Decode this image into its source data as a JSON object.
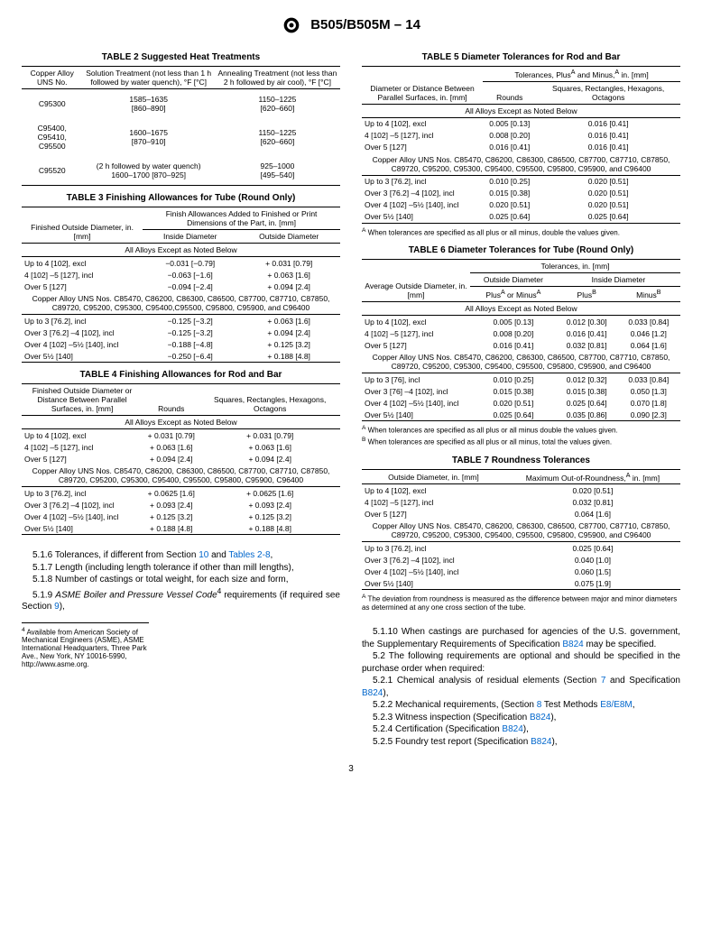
{
  "header": {
    "spec": "B505/B505M – 14"
  },
  "table2": {
    "title": "TABLE 2 Suggested Heat Treatments",
    "cols": [
      "Copper Alloy UNS No.",
      "Solution Treatment (not less than 1 h followed by water quench), °F [°C]",
      "Annealing Treatment (not less than 2 h followed by air cool), °F [°C]"
    ],
    "rows": [
      [
        "C95300",
        "1585–1635\n[860–890]",
        "1150–1225\n[620–660]"
      ],
      [
        "C95400, C95410, C95500",
        "1600–1675\n[870–910]",
        "1150–1225\n[620–660]"
      ],
      [
        "C95520",
        "(2 h followed by water quench)\n1600–1700 [870–925]",
        "925–1000\n[495–540]"
      ]
    ]
  },
  "table3": {
    "title": "TABLE 3 Finishing Allowances for Tube (Round Only)",
    "h1": "Finished Outside Diameter, in. [mm]",
    "h2": "Finish Allowances Added to Finished or Print Dimensions of the Part, in. [mm]",
    "sub": [
      "Inside Diameter",
      "Outside Diameter"
    ],
    "note1": "All Alloys Except as Noted Below",
    "r1": [
      [
        "Up to 4 [102], excl",
        "−0.031 [−0.79]",
        "+ 0.031 [0.79]"
      ],
      [
        "4 [102] –5 [127], incl",
        "−0.063 [−1.6]",
        "+ 0.063 [1.6]"
      ],
      [
        "Over 5 [127]",
        "−0.094 [−2.4]",
        "+ 0.094 [2.4]"
      ]
    ],
    "note2": "Copper Alloy UNS Nos. C85470, C86200, C86300, C86500, C87700, C87710, C87850, C89720, C95200, C95300, C95400,C95500, C95800, C95900, and C96400",
    "r2": [
      [
        "Up to 3 [76.2], incl",
        "−0.125 [−3.2]",
        "+ 0.063 [1.6]"
      ],
      [
        "Over 3 [76.2] –4 [102], incl",
        "−0.125 [−3.2]",
        "+ 0.094 [2.4]"
      ],
      [
        "Over 4 [102] –5½ [140], incl",
        "−0.188 [−4.8]",
        "+ 0.125 [3.2]"
      ],
      [
        "Over 5½ [140]",
        "−0.250 [−6.4]",
        "+ 0.188 [4.8]"
      ]
    ]
  },
  "table4": {
    "title": "TABLE 4 Finishing Allowances for Rod and Bar",
    "cols": [
      "Finished Outside Diameter or Distance Between Parallel Surfaces, in. [mm]",
      "Rounds",
      "Squares, Rectangles, Hexagons, Octagons"
    ],
    "note1": "All Alloys Except as Noted Below",
    "r1": [
      [
        "Up to 4 [102], excl",
        "+ 0.031 [0.79]",
        "+ 0.031 [0.79]"
      ],
      [
        "4 [102] –5 [127], incl",
        "+ 0.063 [1.6]",
        "+ 0.063 [1.6]"
      ],
      [
        "Over 5 [127]",
        "+ 0.094 [2.4]",
        "+ 0.094 [2.4]"
      ]
    ],
    "note2": "Copper Alloy UNS Nos. C85470, C86200, C86300, C86500, C87700, C87710, C87850, C89720, C95200, C95300, C95400, C95500, C95800, C95900, C96400",
    "r2": [
      [
        "Up to 3 [76.2], incl",
        "+ 0.0625 [1.6]",
        "+ 0.0625 [1.6]"
      ],
      [
        "Over 3 [76.2] –4 [102], incl",
        "+ 0.093 [2.4]",
        "+ 0.093 [2.4]"
      ],
      [
        "Over 4 [102] –5½ [140], incl",
        "+ 0.125 [3.2]",
        "+ 0.125 [3.2]"
      ],
      [
        "Over 5½ [140]",
        "+ 0.188 [4.8]",
        "+ 0.188 [4.8]"
      ]
    ]
  },
  "table5": {
    "title": "TABLE 5 Diameter Tolerances for Rod and Bar",
    "h1": "Diameter or Distance Between Parallel Surfaces, in. [mm]",
    "h2": "Tolerances, Plus<sup>A</sup> and Minus,<sup>A</sup> in. [mm]",
    "sub": [
      "Rounds",
      "Squares, Rectangles, Hexagons, Octagons"
    ],
    "note1": "All Alloys Except as Noted Below",
    "r1": [
      [
        "Up to 4 [102], excl",
        "0.005 [0.13]",
        "0.016 [0.41]"
      ],
      [
        "4 [102] –5 [127], incl",
        "0.008 [0.20]",
        "0.016 [0.41]"
      ],
      [
        "Over 5 [127]",
        "0.016 [0.41]",
        "0.016 [0.41]"
      ]
    ],
    "note2": "Copper Alloy UNS Nos. C85470, C86200, C86300, C86500, C87700, C87710, C87850, C89720, C95200, C95300, C95400, C95500, C95800, C95900, and C96400",
    "r2": [
      [
        "Up to 3 [76.2], incl",
        "0.010 [0.25]",
        "0.020 [0.51]"
      ],
      [
        "Over 3 [76.2] –4 [102], incl",
        "0.015 [0.38]",
        "0.020 [0.51]"
      ],
      [
        "Over 4 [102] –5½ [140], incl",
        "0.020 [0.51]",
        "0.020 [0.51]"
      ],
      [
        "Over 5½ [140]",
        "0.025 [0.64]",
        "0.025 [0.64]"
      ]
    ],
    "foot": "<sup>A</sup> When tolerances are specified as all plus or all minus, double the values given."
  },
  "table6": {
    "title": "TABLE 6 Diameter Tolerances for Tube (Round Only)",
    "h1": "Average Outside Diameter, in. [mm]",
    "h2": "Tolerances, in. [mm]",
    "sub1": [
      "Outside Diameter",
      "Inside Diameter"
    ],
    "sub2": [
      "Plus<sup>A</sup> or Minus<sup>A</sup>",
      "Plus<sup>B</sup>",
      "Minus<sup>B</sup>"
    ],
    "note1": "All Alloys Except as Noted Below",
    "r1": [
      [
        "Up to 4 [102], excl",
        "0.005 [0.13]",
        "0.012 [0.30]",
        "0.033 [0.84]"
      ],
      [
        "4 [102] –5 [127], incl",
        "0.008 [0.20]",
        "0.016 [0.41]",
        "0.046 [1.2]"
      ],
      [
        "Over 5 [127]",
        "0.016 [0.41]",
        "0.032 [0.81]",
        "0.064 [1.6]"
      ]
    ],
    "note2": "Copper Alloy UNS Nos. C85470, C86200, C86300, C86500, C87700, C87710, C87850, C89720, C95200, C95300, C95400, C95500, C95800, C95900, and C96400",
    "r2": [
      [
        "Up to 3 [76], incl",
        "0.010 [0.25]",
        "0.012 [0.32]",
        "0.033 [0.84]"
      ],
      [
        "Over 3 [76] –4 [102], incl",
        "0.015 [0.38]",
        "0.015 [0.38]",
        "0.050 [1.3]"
      ],
      [
        "Over 4 [102] –5½ [140], incl",
        "0.020 [0.51]",
        "0.025 [0.64]",
        "0.070 [1.8]"
      ],
      [
        "Over 5½ [140]",
        "0.025 [0.64]",
        "0.035 [0.86]",
        "0.090 [2.3]"
      ]
    ],
    "footA": "<sup>A</sup> When tolerances are specified as all plus or all minus double the values given.",
    "footB": "<sup>B</sup> When tolerances are specified as all plus or all minus, total the values given."
  },
  "table7": {
    "title": "TABLE 7 Roundness Tolerances",
    "cols": [
      "Outside Diameter, in. [mm]",
      "Maximum Out-of-Roundness,<sup>A</sup> in. [mm]"
    ],
    "r1": [
      [
        "Up to 4 [102], excl",
        "0.020 [0.51]"
      ],
      [
        "4 [102] –5 [127], incl",
        "0.032 [0.81]"
      ],
      [
        "Over 5 [127]",
        "0.064 [1.6]"
      ]
    ],
    "note2": "Copper Alloy UNS Nos. C85470, C86200, C86300, C86500, C87700, C87710, C87850, C89720, C95200, C95300, C95400, C95500, C95800, C95900, and C96400",
    "r2": [
      [
        "Up to 3 [76.2], incl",
        "0.025 [0.64]"
      ],
      [
        "Over 3 [76.2] –4 [102], incl",
        "0.040 [1.0]"
      ],
      [
        "Over 4 [102] –5½ [140], incl",
        "0.060 [1.5]"
      ],
      [
        "Over 5½ [140]",
        "0.075 [1.9]"
      ]
    ],
    "foot": "<sup>A</sup> The deviation from roundness is measured as the difference between major and minor diameters as determined at any one cross section of the tube."
  },
  "body": {
    "left": [
      "5.1.6 Tolerances, if different from Section <span class='link'>10</span> and <span class='link'>Tables 2-8</span>,",
      "5.1.7 Length (including length tolerance if other than mill lengths),",
      "5.1.8 Number of castings or total weight, for each size and form,",
      "5.1.9 <span class='ital'>ASME Boiler and Pressure Vessel Code</span><sup>4</sup> requirements (if required see Section <span class='link'>9</span>),"
    ],
    "right": [
      "5.1.10 When castings are purchased for agencies of the U.S. government, the Supplementary Requirements of Specification <span class='link'>B824</span> may be specified.",
      "5.2 The following requirements are optional and should be specified in the purchase order when required:",
      "5.2.1 Chemical analysis of residual elements (Section <span class='link'>7</span> and Specification <span class='link'>B824</span>),",
      "5.2.2 Mechanical requirements, (Section <span class='link'>8</span> Test Methods <span class='link'>E8/E8M</span>,",
      "5.2.3 Witness inspection (Specification <span class='link'>B824</span>),",
      "5.2.4 Certification (Specification <span class='link'>B824</span>),",
      "5.2.5 Foundry test report (Specification <span class='link'>B824</span>),"
    ],
    "footnote": "<sup>4</sup> Available from American Society of Mechanical Engineers (ASME), ASME International Headquarters, Three Park Ave., New York, NY 10016-5990, http://www.asme.org."
  },
  "page": "3"
}
